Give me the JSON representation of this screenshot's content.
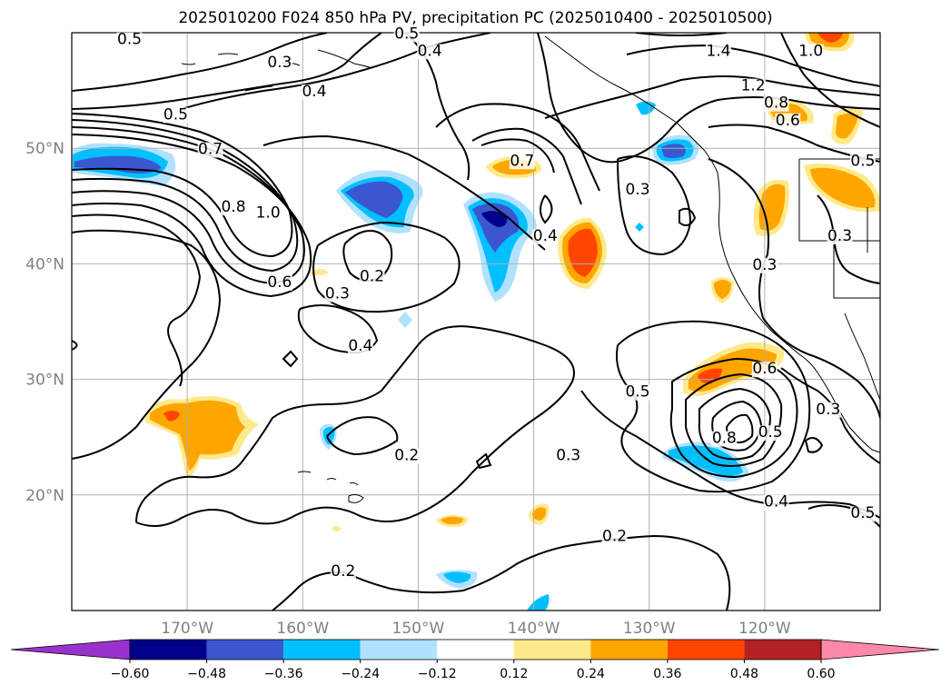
{
  "title": "2025010200 F024 850 hPa PV, precipitation PC (2025010400 - 2025010500)",
  "map": {
    "extent": {
      "lon_min": -180,
      "lon_max": -110,
      "lat_min": 10,
      "lat_max": 60
    },
    "lat_ticks": [
      {
        "value": 20,
        "label": "20°N"
      },
      {
        "value": 30,
        "label": "30°N"
      },
      {
        "value": 40,
        "label": "40°N"
      },
      {
        "value": 50,
        "label": "50°N"
      }
    ],
    "lon_ticks": [
      {
        "value": -170,
        "label": "170°W"
      },
      {
        "value": -160,
        "label": "160°W"
      },
      {
        "value": -150,
        "label": "150°W"
      },
      {
        "value": -140,
        "label": "140°W"
      },
      {
        "value": -130,
        "label": "130°W"
      },
      {
        "value": -120,
        "label": "120°W"
      }
    ],
    "grid": true,
    "contour_labels": [
      {
        "text": "0.5",
        "lon": -175,
        "lat": 59
      },
      {
        "text": "0.3",
        "lon": -162,
        "lat": 57
      },
      {
        "text": "0.4",
        "lon": -159,
        "lat": 54.5
      },
      {
        "text": "0.5",
        "lon": -171,
        "lat": 52.5
      },
      {
        "text": "0.7",
        "lon": -168,
        "lat": 49.5
      },
      {
        "text": "0.8",
        "lon": -166,
        "lat": 44.5
      },
      {
        "text": "1.0",
        "lon": -163,
        "lat": 44
      },
      {
        "text": "0.6",
        "lon": -162,
        "lat": 38
      },
      {
        "text": "0.2",
        "lon": -154,
        "lat": 38.5
      },
      {
        "text": "0.3",
        "lon": -157,
        "lat": 37
      },
      {
        "text": "0.4",
        "lon": -155,
        "lat": 32.5
      },
      {
        "text": "0.5",
        "lon": -151,
        "lat": 59.5
      },
      {
        "text": "0.4",
        "lon": -149,
        "lat": 58
      },
      {
        "text": "0.7",
        "lon": -141,
        "lat": 48.5
      },
      {
        "text": "0.4",
        "lon": -139,
        "lat": 42
      },
      {
        "text": "0.3",
        "lon": -131,
        "lat": 46
      },
      {
        "text": "1.4",
        "lon": -124,
        "lat": 58
      },
      {
        "text": "1.2",
        "lon": -121,
        "lat": 55
      },
      {
        "text": "0.8",
        "lon": -119,
        "lat": 53.5
      },
      {
        "text": "0.6",
        "lon": -118,
        "lat": 52
      },
      {
        "text": "1.0",
        "lon": -116,
        "lat": 58
      },
      {
        "text": "0.5",
        "lon": -111.5,
        "lat": 48.5
      },
      {
        "text": "0.3",
        "lon": -113.5,
        "lat": 42
      },
      {
        "text": "0.3",
        "lon": -120,
        "lat": 39.5
      },
      {
        "text": "0.6",
        "lon": -120,
        "lat": 30.5
      },
      {
        "text": "0.5",
        "lon": -131,
        "lat": 28.5
      },
      {
        "text": "0.8",
        "lon": -123.5,
        "lat": 24.5
      },
      {
        "text": "0.5",
        "lon": -119.5,
        "lat": 25
      },
      {
        "text": "0.3",
        "lon": -114.5,
        "lat": 27
      },
      {
        "text": "0.2",
        "lon": -151,
        "lat": 23
      },
      {
        "text": "0.3",
        "lon": -137,
        "lat": 23
      },
      {
        "text": "0.4",
        "lon": -119,
        "lat": 19
      },
      {
        "text": "0.5",
        "lon": -111.5,
        "lat": 18
      },
      {
        "text": "0.2",
        "lon": -133,
        "lat": 16
      },
      {
        "text": "0.2",
        "lon": -156.5,
        "lat": 13
      }
    ]
  },
  "colorbar": {
    "levels": [
      -0.6,
      -0.48,
      -0.36,
      -0.24,
      -0.12,
      0.12,
      0.24,
      0.36,
      0.48,
      0.6
    ],
    "tick_labels": [
      "−0.60",
      "−0.48",
      "−0.36",
      "−0.24",
      "−0.12",
      "0.12",
      "0.24",
      "0.36",
      "0.48",
      "0.60"
    ],
    "colors": [
      "#9932cc",
      "#00008b",
      "#3a57cf",
      "#00bfff",
      "#b0e2ff",
      "#ffffff",
      "#ffe98a",
      "#ffa500",
      "#ff4500",
      "#b22222",
      "#ff88aa"
    ],
    "extend": "both"
  }
}
